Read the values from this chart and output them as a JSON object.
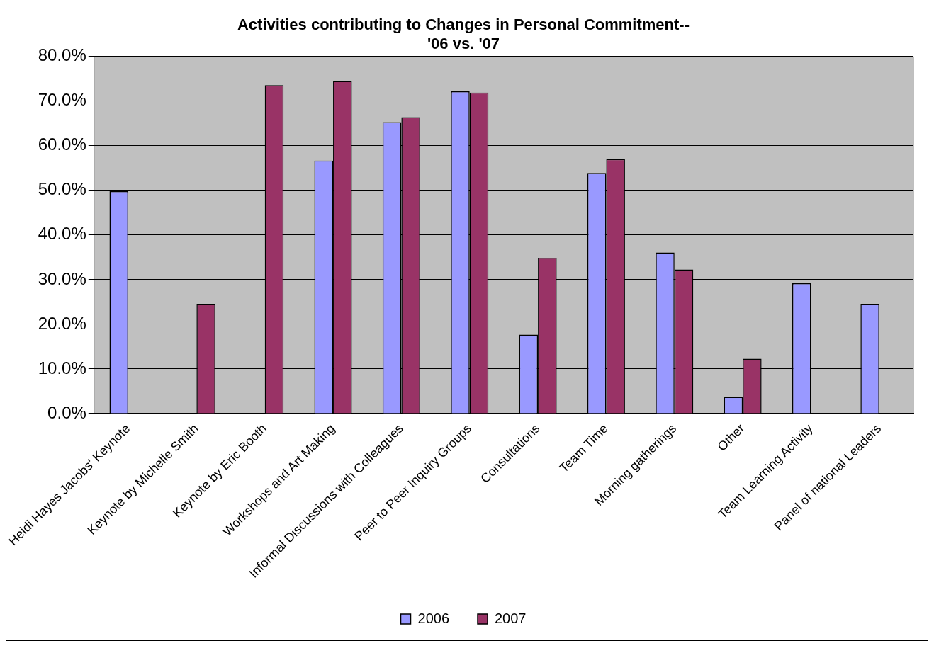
{
  "chart_data": {
    "type": "bar",
    "title": "Activities contributing to Changes in Personal Commitment--\n'06 vs. '07",
    "categories": [
      "Heidi Hayes Jacobs' Keynote",
      "Keynote by Michelle Smith",
      "Keynote by Eric Booth",
      "Workshops and Art Making",
      "Informal Discussions with Colleagues",
      "Peer to Peer Inquiry Groups",
      "Consultations",
      "Team Time",
      "Morning gatherings",
      "Other",
      "Team Learning Activity",
      "Panel of national Leaders"
    ],
    "series": [
      {
        "name": "2006",
        "color": "#9999ff",
        "values": [
          49.8,
          null,
          null,
          56.7,
          65.3,
          72.2,
          17.7,
          53.9,
          36.1,
          3.7,
          29.2,
          24.6
        ]
      },
      {
        "name": "2007",
        "color": "#993366",
        "values": [
          null,
          24.6,
          73.6,
          74.5,
          66.4,
          71.9,
          34.9,
          57.0,
          32.3,
          12.3,
          null,
          null
        ]
      }
    ],
    "ylim": [
      0,
      80
    ],
    "yticks": [
      {
        "value": 0,
        "label": "0.0%"
      },
      {
        "value": 10,
        "label": "10.0%"
      },
      {
        "value": 20,
        "label": "20.0%"
      },
      {
        "value": 30,
        "label": "30.0%"
      },
      {
        "value": 40,
        "label": "40.0%"
      },
      {
        "value": 50,
        "label": "50.0%"
      },
      {
        "value": 60,
        "label": "60.0%"
      },
      {
        "value": 70,
        "label": "70.0%"
      },
      {
        "value": 80,
        "label": "80.0%"
      }
    ],
    "grid": "y",
    "legend": "bottom"
  }
}
